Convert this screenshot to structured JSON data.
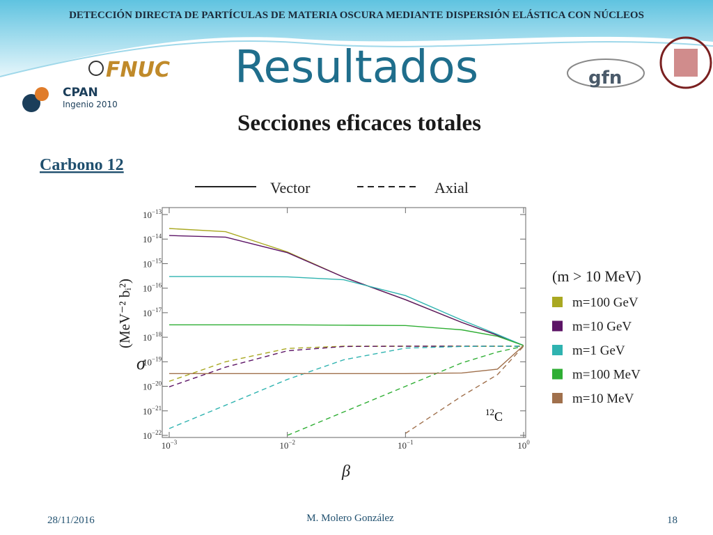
{
  "header": "DETECCIÓN DIRECTA DE PARTÍCULAS DE MATERIA OSCURA MEDIANTE DISPERSIÓN ELÁSTICA CON NÚCLEOS",
  "title": "Resultados",
  "subtitle": "Secciones eficaces totales",
  "section": "Carbono 12",
  "logos": [
    "FNUC",
    "CPAN",
    "Ingenio 2010",
    "gfn"
  ],
  "footer": {
    "date": "28/11/2016",
    "author": "M. Molero González",
    "page": "18"
  },
  "chart_data": {
    "type": "line",
    "xlabel": "β",
    "ylabel": "σ",
    "ylabel_unit": "(MeV⁻² bᵢ²)",
    "log_x": true,
    "log_y": true,
    "xlim": [
      0.001,
      1
    ],
    "ylim": [
      1e-22,
      1e-13
    ],
    "xticks": [
      {
        "value": 0.001,
        "label": "10",
        "exponent": "−3"
      },
      {
        "value": 0.01,
        "label": "10",
        "exponent": "−2"
      },
      {
        "value": 0.1,
        "label": "10",
        "exponent": "−1"
      },
      {
        "value": 1,
        "label": "10",
        "exponent": "0"
      }
    ],
    "yticks": [
      {
        "value": 1e-13,
        "label": "10",
        "exponent": "−13"
      },
      {
        "value": 1e-14,
        "label": "10",
        "exponent": "−14"
      },
      {
        "value": 1e-15,
        "label": "10",
        "exponent": "−15"
      },
      {
        "value": 1e-16,
        "label": "10",
        "exponent": "−16"
      },
      {
        "value": 1e-17,
        "label": "10",
        "exponent": "−17"
      },
      {
        "value": 1e-18,
        "label": "10",
        "exponent": "−18"
      },
      {
        "value": 1e-19,
        "label": "10",
        "exponent": "−19"
      },
      {
        "value": 1e-20,
        "label": "10",
        "exponent": "−20"
      },
      {
        "value": 1e-21,
        "label": "10",
        "exponent": "−21"
      },
      {
        "value": 1e-22,
        "label": "10",
        "exponent": "−22"
      }
    ],
    "styles": {
      "vector": "Vector",
      "axial": "Axial"
    },
    "legend_title": "(m > 10 MeV)",
    "annotation": [
      "12",
      "C"
    ],
    "x": [
      0.001,
      0.003,
      0.01,
      0.03,
      0.1,
      0.3,
      0.6,
      1
    ],
    "series": [
      {
        "name": "m=100 GeV",
        "color": "#a9a821",
        "vector": [
          2.7e-14,
          2e-14,
          3e-15,
          2.8e-16,
          3.4e-17,
          4e-18,
          1.2e-18,
          4.6e-19
        ],
        "axial": [
          1.6e-20,
          1e-19,
          3.5e-19,
          4.3e-19,
          4.3e-19,
          4.3e-19,
          4.3e-19,
          4.3e-19
        ]
      },
      {
        "name": "m=10 GeV",
        "color": "#5c1466",
        "vector": [
          1.4e-14,
          1.2e-14,
          2.8e-15,
          2.8e-16,
          3.4e-17,
          4e-18,
          1.2e-18,
          4.6e-19
        ],
        "axial": [
          9.5e-21,
          6e-20,
          2.8e-19,
          4.2e-19,
          4.3e-19,
          4.3e-19,
          4.3e-19,
          4.3e-19
        ]
      },
      {
        "name": "m=1 GeV",
        "color": "#2fb3b0",
        "vector": [
          3e-16,
          3e-16,
          2.9e-16,
          2.2e-16,
          5e-17,
          5e-18,
          1.3e-18,
          4.6e-19
        ],
        "axial": [
          1.9e-22,
          1.7e-21,
          1.9e-20,
          1.2e-19,
          3.6e-19,
          4.2e-19,
          4.3e-19,
          4.3e-19
        ]
      },
      {
        "name": "m=100 MeV",
        "color": "#2fae34",
        "vector": [
          3.2e-18,
          3.2e-18,
          3.2e-18,
          3.1e-18,
          3e-18,
          2e-18,
          1.1e-18,
          4.6e-19
        ],
        "axial": [
          null,
          null,
          1e-22,
          9e-22,
          1e-20,
          9e-20,
          2.5e-19,
          4.3e-19
        ]
      },
      {
        "name": "m=10 MeV",
        "color": "#a0704c",
        "vector": [
          3.3e-20,
          3.3e-20,
          3.3e-20,
          3.3e-20,
          3.3e-20,
          3.5e-20,
          5e-20,
          4.6e-19
        ],
        "axial": [
          null,
          null,
          null,
          null,
          1.2e-22,
          4e-21,
          3e-20,
          4.3e-19
        ]
      }
    ]
  }
}
